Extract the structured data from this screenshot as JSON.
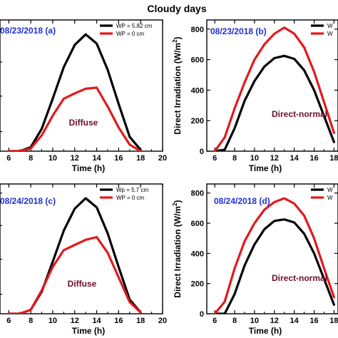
{
  "title": "Cloudy days",
  "colors": {
    "black_series": "#000000",
    "red_series": "#e31a1c",
    "date_text": "#1f2fd6",
    "annotation_text": "#6b0f2a"
  },
  "chart_data": [
    {
      "type": "line",
      "panel_label": "08/23/2018 (a)",
      "annotation": "Diffuse",
      "xlabel": "Time (h)",
      "ylabel": "",
      "xlim": [
        5.2,
        20
      ],
      "ylim": [
        0,
        500
      ],
      "xticks": [
        6,
        8,
        10,
        12,
        14,
        16,
        18,
        20
      ],
      "yticks": [],
      "x": [
        6,
        7,
        8,
        9,
        10,
        11,
        12,
        13,
        14,
        15,
        16,
        17,
        18
      ],
      "series": [
        {
          "name": "WP = 5.82 cm",
          "color": "#000000",
          "values": [
            0,
            0,
            15,
            85,
            200,
            320,
            405,
            445,
            410,
            310,
            180,
            55,
            5
          ]
        },
        {
          "name": "WP = 0 cm",
          "color": "#e31a1c",
          "values": [
            0,
            0,
            10,
            60,
            135,
            200,
            220,
            238,
            242,
            170,
            90,
            25,
            0
          ]
        }
      ],
      "legend": "top-right"
    },
    {
      "type": "line",
      "panel_label": "08/23/2018 (b)",
      "annotation": "Direct-normal",
      "xlabel": "Time (h)",
      "ylabel": "Direct Irradiation (W/m2)",
      "xlim": [
        5.2,
        18.4
      ],
      "ylim": [
        0,
        860
      ],
      "xticks": [
        6,
        8,
        10,
        12,
        14,
        16,
        18
      ],
      "yticks": [
        0,
        200,
        400,
        600,
        800
      ],
      "x": [
        6,
        7,
        8,
        9,
        10,
        11,
        12,
        13,
        14,
        15,
        16,
        17,
        18
      ],
      "series": [
        {
          "name": "W",
          "color": "#000000",
          "values": [
            0,
            10,
            150,
            330,
            460,
            555,
            610,
            625,
            605,
            530,
            400,
            230,
            60
          ]
        },
        {
          "name": "W",
          "color": "#e31a1c",
          "values": [
            0,
            90,
            280,
            450,
            600,
            700,
            770,
            810,
            770,
            680,
            520,
            320,
            120
          ]
        }
      ],
      "legend": "top-right"
    },
    {
      "type": "line",
      "panel_label": "08/24/2018 (c)",
      "annotation": "Diffuse",
      "xlabel": "Time (h)",
      "ylabel": "",
      "xlim": [
        5.2,
        20
      ],
      "ylim": [
        0,
        500
      ],
      "xticks": [
        6,
        8,
        10,
        12,
        14,
        16,
        18,
        20
      ],
      "yticks": [],
      "x": [
        6,
        7,
        8,
        9,
        10,
        11,
        12,
        13,
        14,
        15,
        16,
        17,
        18
      ],
      "series": [
        {
          "name": "Wp = 5.7 cm",
          "color": "#000000",
          "values": [
            0,
            0,
            15,
            85,
            200,
            320,
            405,
            445,
            410,
            310,
            180,
            55,
            5
          ]
        },
        {
          "name": "WP = 0 cm",
          "color": "#e31a1c",
          "values": [
            0,
            0,
            15,
            90,
            180,
            245,
            265,
            285,
            295,
            235,
            140,
            45,
            5
          ]
        }
      ],
      "legend": "top-right"
    },
    {
      "type": "line",
      "panel_label": "08/24/2018 (d)",
      "annotation": "Direct-normal",
      "xlabel": "Time (h)",
      "ylabel": "Direct Irradiation (W/m2)",
      "xlim": [
        5.2,
        18.4
      ],
      "ylim": [
        0,
        860
      ],
      "xticks": [
        6,
        8,
        10,
        12,
        14,
        16,
        18
      ],
      "yticks": [
        0,
        200,
        400,
        600,
        800
      ],
      "x": [
        6,
        7,
        8,
        9,
        10,
        11,
        12,
        13,
        14,
        15,
        16,
        17,
        18
      ],
      "series": [
        {
          "name": "W",
          "color": "#000000",
          "values": [
            0,
            0,
            130,
            320,
            460,
            560,
            615,
            625,
            605,
            530,
            400,
            230,
            60
          ]
        },
        {
          "name": "W",
          "color": "#e31a1c",
          "values": [
            0,
            80,
            300,
            480,
            600,
            690,
            740,
            765,
            730,
            650,
            500,
            300,
            110
          ]
        }
      ],
      "legend": "top-right"
    }
  ]
}
